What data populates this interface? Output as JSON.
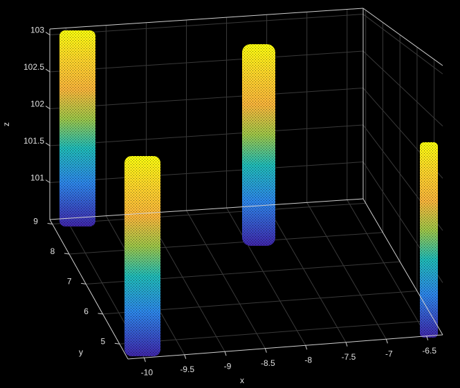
{
  "chart_data": {
    "type": "scatter3d",
    "xlabel": "x",
    "ylabel": "y",
    "zlabel": "z",
    "xlim": [
      -10.2,
      -6.3
    ],
    "ylim": [
      4.5,
      9.15
    ],
    "zlim": [
      100.5,
      103.08
    ],
    "xticks": [
      -10,
      -9.5,
      -9,
      -8.5,
      -8,
      -7.5,
      -7,
      -6.5
    ],
    "yticks": [
      5,
      6,
      7,
      8,
      9
    ],
    "zticks": [
      101,
      101.5,
      102,
      102.5,
      103
    ],
    "grid": true
  }
}
